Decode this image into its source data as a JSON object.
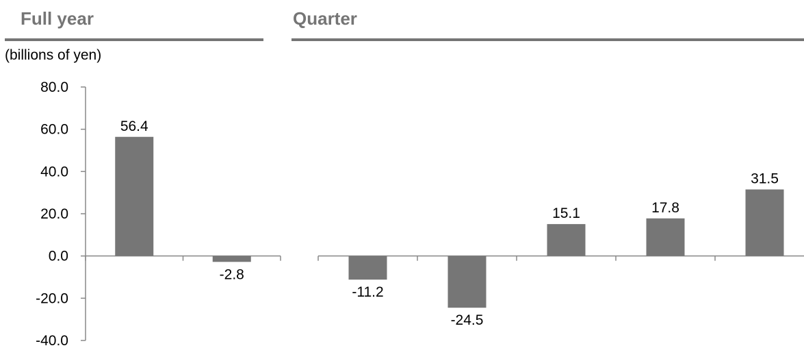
{
  "headers": {
    "full_year": "Full year",
    "quarter": "Quarter"
  },
  "unit_label": "(billions of yen)",
  "colors": {
    "bar": "#767676",
    "header_text": "#757575",
    "rule": "#757575",
    "axis": "#888888"
  },
  "chart_data": [
    {
      "type": "bar",
      "categories": [
        "",
        ""
      ],
      "values": [
        56.4,
        -2.8
      ],
      "data_labels": [
        "56.4",
        "-2.8"
      ],
      "ylabel": "(billions of yen)",
      "ylim": [
        -40,
        80
      ],
      "yticks": [
        80,
        60,
        40,
        20,
        0,
        -20,
        -40
      ],
      "ytick_labels": [
        "80.0",
        "60.0",
        "40.0",
        "20.0",
        "0.0",
        "-20.0",
        "-40.0"
      ],
      "grid": false,
      "legend": "none"
    },
    {
      "type": "bar",
      "categories": [
        "",
        "",
        "",
        "",
        ""
      ],
      "values": [
        -11.2,
        -24.5,
        15.1,
        17.8,
        31.5
      ],
      "data_labels": [
        "-11.2",
        "-24.5",
        "15.1",
        "17.8",
        "31.5"
      ],
      "ylim": [
        -40,
        80
      ],
      "grid": false,
      "legend": "none"
    }
  ]
}
